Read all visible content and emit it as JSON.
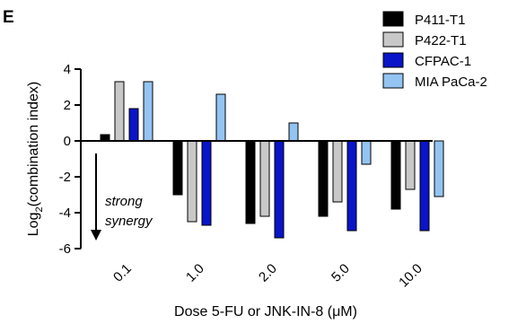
{
  "panel_label": "E",
  "annotation": {
    "lines": [
      "strong",
      "synergy"
    ]
  },
  "chart_data": {
    "type": "bar",
    "title": "",
    "xlabel": "Dose 5-FU or JNK-IN-8 (μM)",
    "ylabel_main": "Log",
    "ylabel_sub": "2",
    "ylabel_rest": "(combination index)",
    "ylim": [
      -6,
      4
    ],
    "yticks": [
      "4",
      "2",
      "0",
      "-2",
      "-4",
      "-6"
    ],
    "categories": [
      "0.1",
      "1.0",
      "2.0",
      "5.0",
      "10.0"
    ],
    "series": [
      {
        "name": "P411-T1",
        "color": "#000000",
        "values": [
          0.35,
          -3.0,
          -4.6,
          -4.2,
          -3.8
        ]
      },
      {
        "name": "P422-T1",
        "color": "#c8c8c8",
        "values": [
          3.3,
          -4.5,
          -4.2,
          -3.4,
          -2.7
        ]
      },
      {
        "name": "CFPAC-1",
        "color": "#0a14c8",
        "values": [
          1.8,
          -4.7,
          -5.4,
          -5.0,
          -5.0
        ]
      },
      {
        "name": "MIA PaCa-2",
        "color": "#93c4f2",
        "values": [
          3.3,
          2.6,
          1.0,
          -1.3,
          -3.1
        ]
      }
    ],
    "legend_position": "top-right",
    "grid": false
  }
}
